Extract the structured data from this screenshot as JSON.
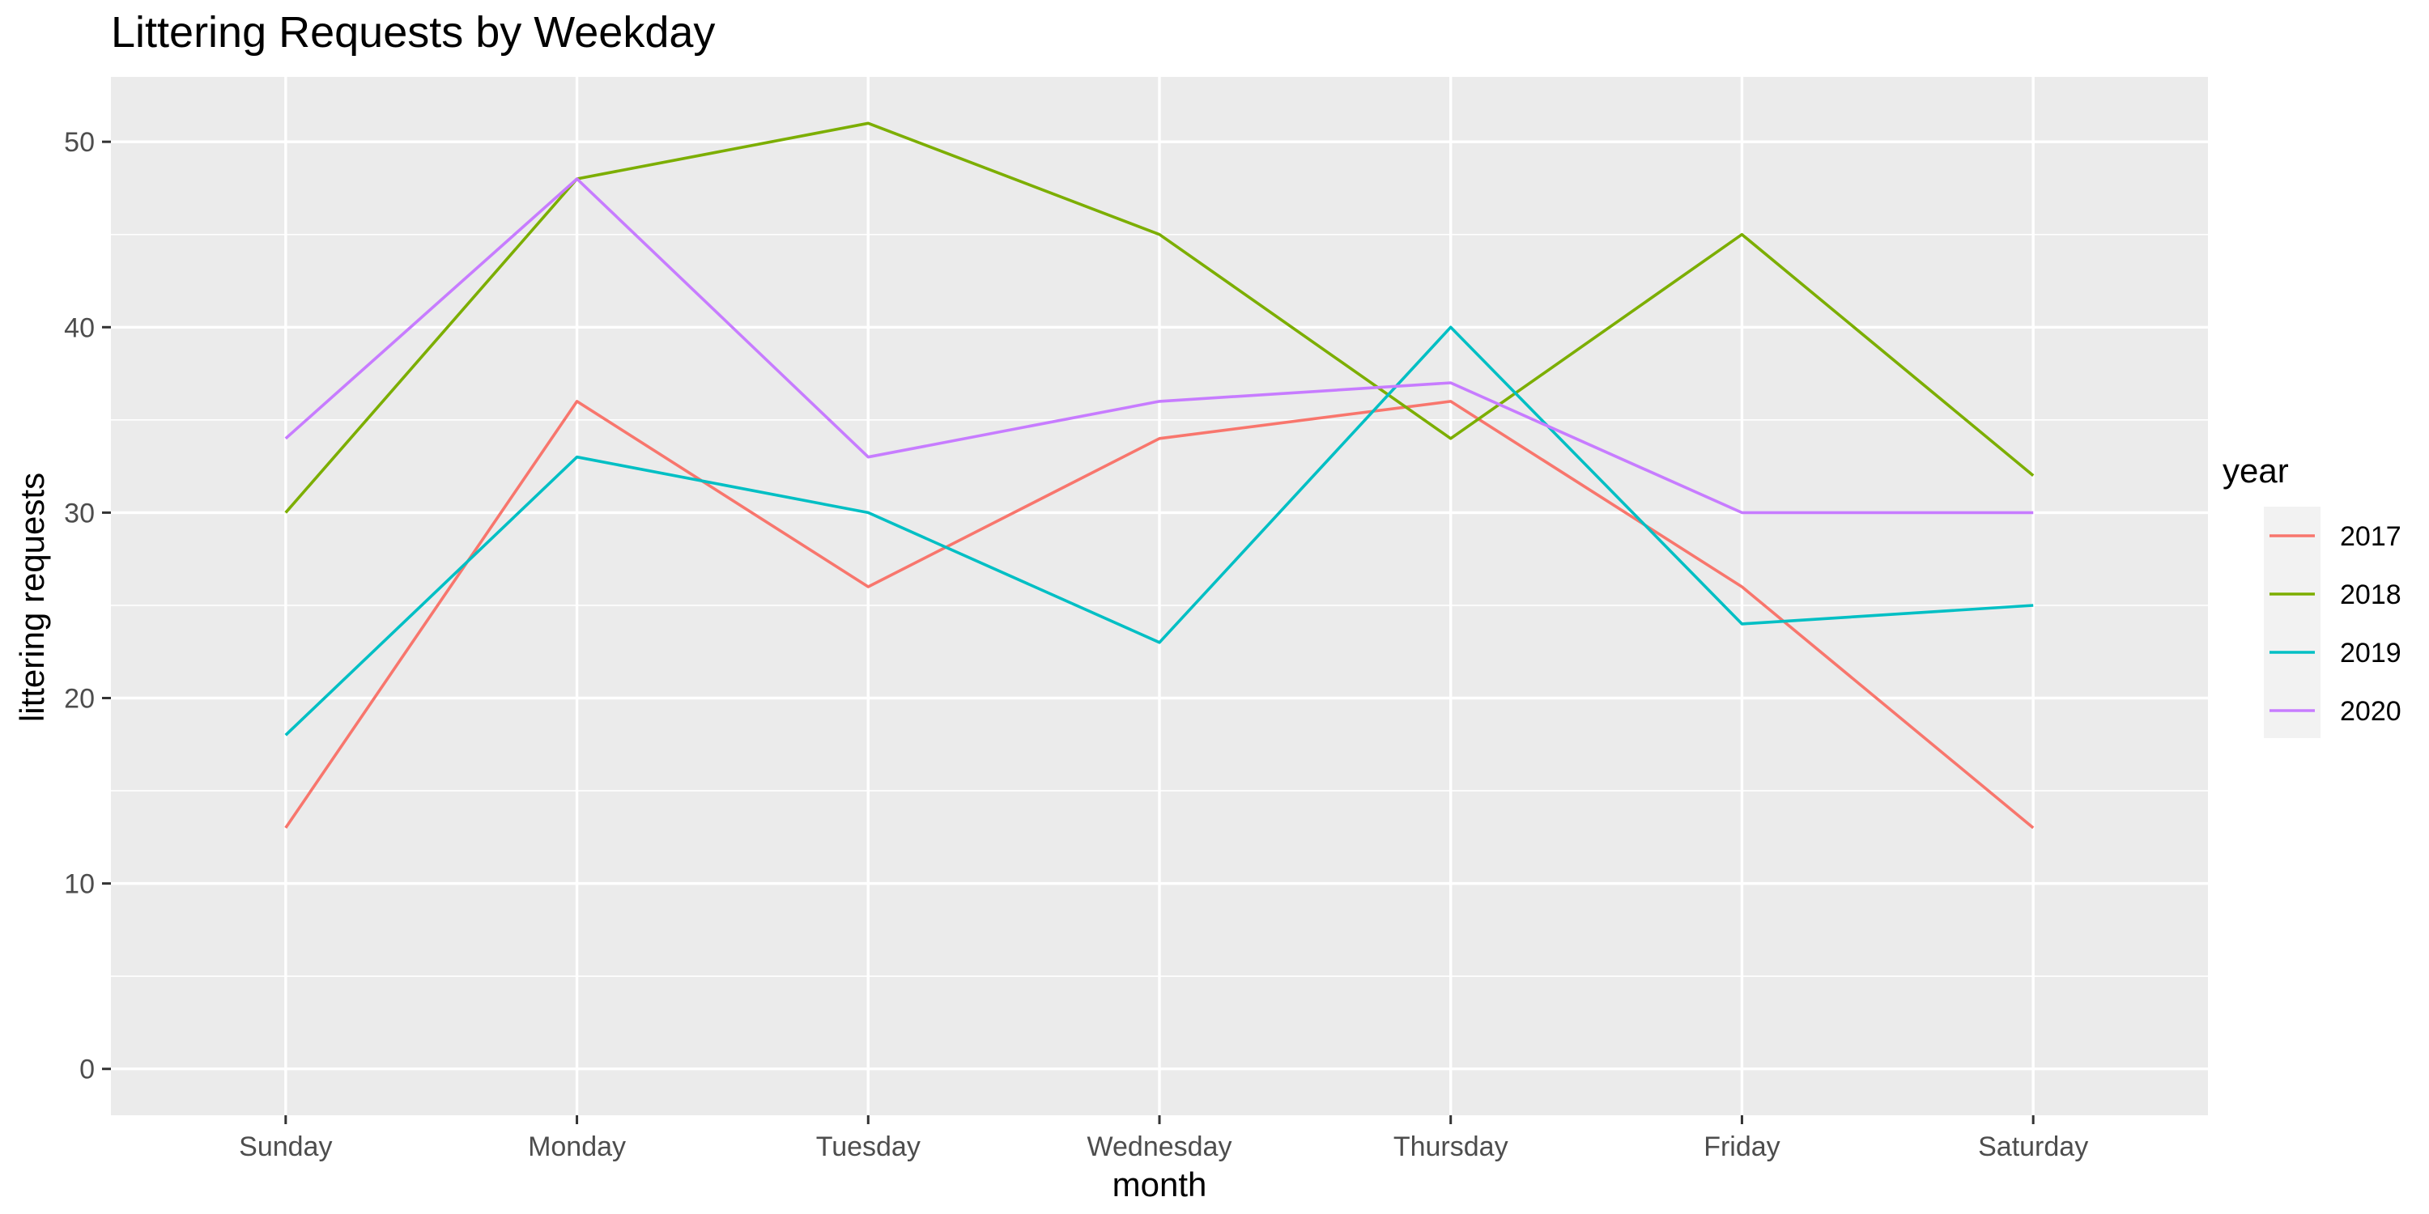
{
  "chart_data": {
    "type": "line",
    "title": "Littering Requests by Weekday",
    "xlabel": "month",
    "ylabel": "littering requests",
    "categories": [
      "Sunday",
      "Monday",
      "Tuesday",
      "Wednesday",
      "Thursday",
      "Friday",
      "Saturday"
    ],
    "ylim": [
      -2.5,
      53.5
    ],
    "yticks": [
      0,
      10,
      20,
      30,
      40,
      50
    ],
    "grid": true,
    "legend": {
      "title": "year",
      "position": "right"
    },
    "series": [
      {
        "name": "2017",
        "color": "#F8766D",
        "values": [
          13,
          36,
          26,
          34,
          36,
          26,
          13
        ]
      },
      {
        "name": "2018",
        "color": "#7CAE00",
        "values": [
          30,
          48,
          51,
          45,
          34,
          45,
          32
        ]
      },
      {
        "name": "2019",
        "color": "#00BFC4",
        "values": [
          18,
          33,
          30,
          23,
          40,
          24,
          25
        ]
      },
      {
        "name": "2020",
        "color": "#C77CFF",
        "values": [
          34,
          48,
          33,
          36,
          37,
          30,
          30
        ]
      }
    ],
    "colors": {
      "panel": "#EBEBEB",
      "grid": "#FFFFFF",
      "legend_key": "#F2F2F2"
    }
  }
}
